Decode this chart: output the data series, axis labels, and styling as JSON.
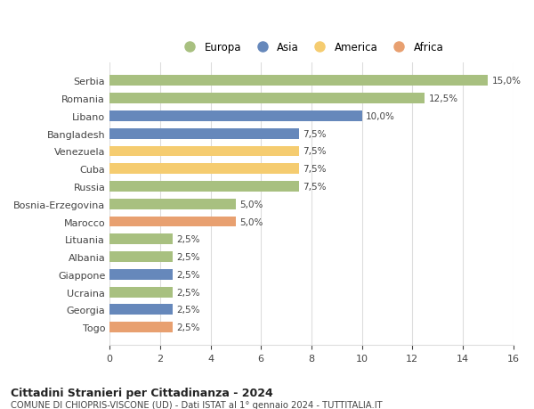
{
  "countries": [
    "Serbia",
    "Romania",
    "Libano",
    "Bangladesh",
    "Venezuela",
    "Cuba",
    "Russia",
    "Bosnia-Erzegovina",
    "Marocco",
    "Lituania",
    "Albania",
    "Giappone",
    "Ucraina",
    "Georgia",
    "Togo"
  ],
  "values": [
    15.0,
    12.5,
    10.0,
    7.5,
    7.5,
    7.5,
    7.5,
    5.0,
    5.0,
    2.5,
    2.5,
    2.5,
    2.5,
    2.5,
    2.5
  ],
  "continents": [
    "Europa",
    "Europa",
    "Asia",
    "Asia",
    "America",
    "America",
    "Europa",
    "Europa",
    "Africa",
    "Europa",
    "Europa",
    "Asia",
    "Europa",
    "Asia",
    "Africa"
  ],
  "colors": {
    "Europa": "#a8c080",
    "Asia": "#6688bb",
    "America": "#f5cc70",
    "Africa": "#e8a070"
  },
  "legend_order": [
    "Europa",
    "Asia",
    "America",
    "Africa"
  ],
  "xlim": [
    0,
    16
  ],
  "xticks": [
    0,
    2,
    4,
    6,
    8,
    10,
    12,
    14,
    16
  ],
  "title": "Cittadini Stranieri per Cittadinanza - 2024",
  "subtitle": "COMUNE DI CHIOPRIS-VISCONE (UD) - Dati ISTAT al 1° gennaio 2024 - TUTTITALIA.IT",
  "background_color": "#ffffff",
  "grid_color": "#dddddd",
  "label_color": "#444444",
  "bar_height": 0.6
}
